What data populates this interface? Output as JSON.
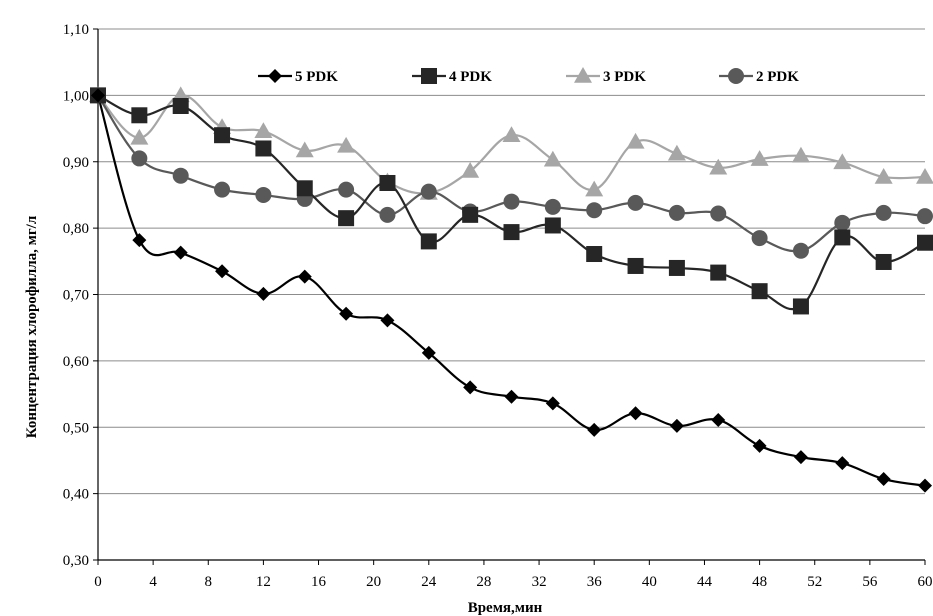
{
  "chart_data": {
    "type": "line",
    "title": "",
    "xlabel": "Время,мин",
    "ylabel": "Концентрация хлорофилла, мг/л",
    "xlim": [
      0,
      60
    ],
    "ylim": [
      0.3,
      1.1
    ],
    "x_ticks": [
      0,
      4,
      8,
      12,
      16,
      20,
      24,
      28,
      32,
      36,
      40,
      44,
      48,
      52,
      56,
      60
    ],
    "x_tick_labels": [
      "0",
      "4",
      "8",
      "12",
      "16",
      "20",
      "24",
      "28",
      "32",
      "36",
      "40",
      "44",
      "48",
      "52",
      "56",
      "60"
    ],
    "y_ticks": [
      0.3,
      0.4,
      0.5,
      0.6,
      0.7,
      0.8,
      0.9,
      1.0,
      1.1
    ],
    "y_tick_labels": [
      "0,30",
      "0,40",
      "0,50",
      "0,60",
      "0,70",
      "0,80",
      "0,90",
      "1,00",
      "1,10"
    ],
    "grid": "horizontal",
    "legend_position": "top",
    "x": [
      0,
      3,
      6,
      9,
      12,
      15,
      18,
      21,
      24,
      27,
      30,
      33,
      36,
      39,
      42,
      45,
      48,
      51,
      54,
      57,
      60
    ],
    "series": [
      {
        "name": "5 PDK",
        "marker": "diamond",
        "color": "#000000",
        "values": [
          1.0,
          0.782,
          0.763,
          0.735,
          0.701,
          0.727,
          0.671,
          0.661,
          0.612,
          0.56,
          0.546,
          0.536,
          0.496,
          0.521,
          0.502,
          0.511,
          0.472,
          0.455,
          0.446,
          0.422,
          0.412
        ]
      },
      {
        "name": "4 PDK",
        "marker": "square",
        "color": "#262626",
        "values": [
          1.0,
          0.97,
          0.984,
          0.94,
          0.92,
          0.86,
          0.815,
          0.868,
          0.78,
          0.82,
          0.794,
          0.804,
          0.761,
          0.743,
          0.74,
          0.733,
          0.705,
          0.682,
          0.786,
          0.749,
          0.778
        ]
      },
      {
        "name": "3 PDK",
        "marker": "triangle",
        "color": "#a6a6a6",
        "values": [
          1.0,
          0.936,
          1.0,
          0.952,
          0.946,
          0.917,
          0.924,
          0.87,
          0.853,
          0.886,
          0.94,
          0.903,
          0.858,
          0.93,
          0.912,
          0.891,
          0.904,
          0.909,
          0.899,
          0.877,
          0.877
        ]
      },
      {
        "name": "2 PDK",
        "marker": "circle",
        "color": "#595959",
        "values": [
          1.0,
          0.905,
          0.879,
          0.858,
          0.85,
          0.844,
          0.858,
          0.82,
          0.855,
          0.825,
          0.84,
          0.832,
          0.827,
          0.838,
          0.823,
          0.822,
          0.785,
          0.766,
          0.808,
          0.823,
          0.818
        ]
      }
    ]
  }
}
